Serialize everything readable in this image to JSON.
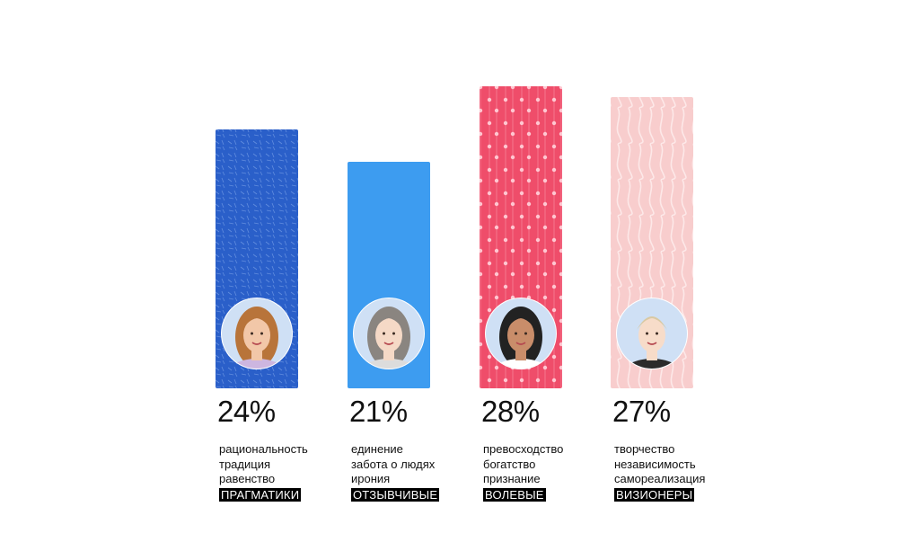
{
  "chart_data": {
    "type": "bar",
    "categories": [
      "ПРАГМАТИКИ",
      "ОТЗЫВЧИВЫЕ",
      "ВОЛЕВЫЕ",
      "ВИЗИОНЕРЫ"
    ],
    "values": [
      24,
      21,
      28,
      27
    ],
    "value_labels": [
      "24%",
      "21%",
      "28%",
      "27%"
    ],
    "ylim": [
      0,
      28
    ],
    "grid": false,
    "legend": "none",
    "columns": [
      {
        "tag": "ПРАГМАТИКИ",
        "percent_label": "24%",
        "value": 24,
        "traits": [
          "рациональность",
          "традиция",
          "равенство"
        ],
        "bar_color": "#2a5fc9",
        "pattern": "dashes",
        "avatar_icon": "woman-long-auburn-hair-avatar-icon"
      },
      {
        "tag": "ОТЗЫВЧИВЫЕ",
        "percent_label": "21%",
        "value": 21,
        "traits": [
          "единение",
          "забота о людях",
          "ирония"
        ],
        "bar_color": "#3d9cf0",
        "pattern": "none",
        "avatar_icon": "woman-long-grey-hair-avatar-icon"
      },
      {
        "tag": "ВОЛЕВЫЕ",
        "percent_label": "28%",
        "value": 28,
        "traits": [
          "превосходство",
          "богатство",
          "признание"
        ],
        "bar_color": "#ef4d6a",
        "pattern": "dots",
        "avatar_icon": "woman-long-dark-hair-avatar-icon"
      },
      {
        "tag": "ВИЗИОНЕРЫ",
        "percent_label": "27%",
        "value": 27,
        "traits": [
          "творчество",
          "независимость",
          "самореализация"
        ],
        "bar_color": "#f8cdcd",
        "pattern": "waves",
        "avatar_icon": "woman-short-blonde-hair-avatar-icon"
      }
    ]
  }
}
